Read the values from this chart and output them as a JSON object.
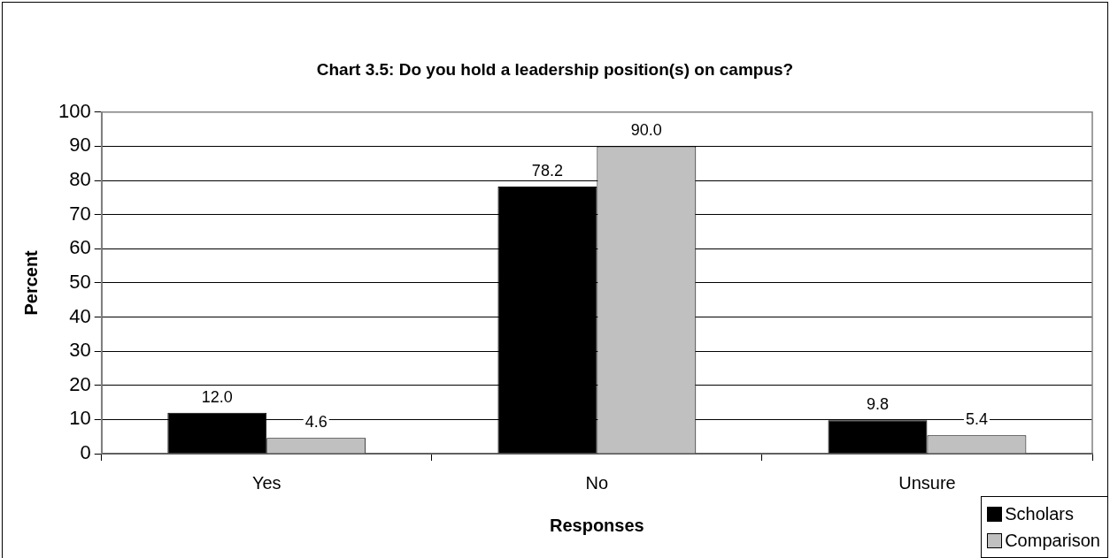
{
  "chart_data": {
    "type": "bar",
    "title": "Chart 3.5: Do you hold a leadership position(s) on campus?",
    "xlabel": "Responses",
    "ylabel": "Percent",
    "categories": [
      "Yes",
      "No",
      "Unsure"
    ],
    "series": [
      {
        "name": "Scholars",
        "color": "#000000",
        "values": [
          12.0,
          78.2,
          9.8
        ],
        "value_labels": [
          "12.0",
          "78.2",
          "9.8"
        ]
      },
      {
        "name": "Comparison",
        "color": "#c0c0c0",
        "values": [
          4.6,
          90.0,
          5.4
        ],
        "value_labels": [
          "4.6",
          "90.0",
          "5.4"
        ]
      }
    ],
    "ylim": [
      0,
      100
    ],
    "yticks": [
      0,
      10,
      20,
      30,
      40,
      50,
      60,
      70,
      80,
      90,
      100
    ],
    "grid": "y",
    "legend": "bottom right"
  }
}
